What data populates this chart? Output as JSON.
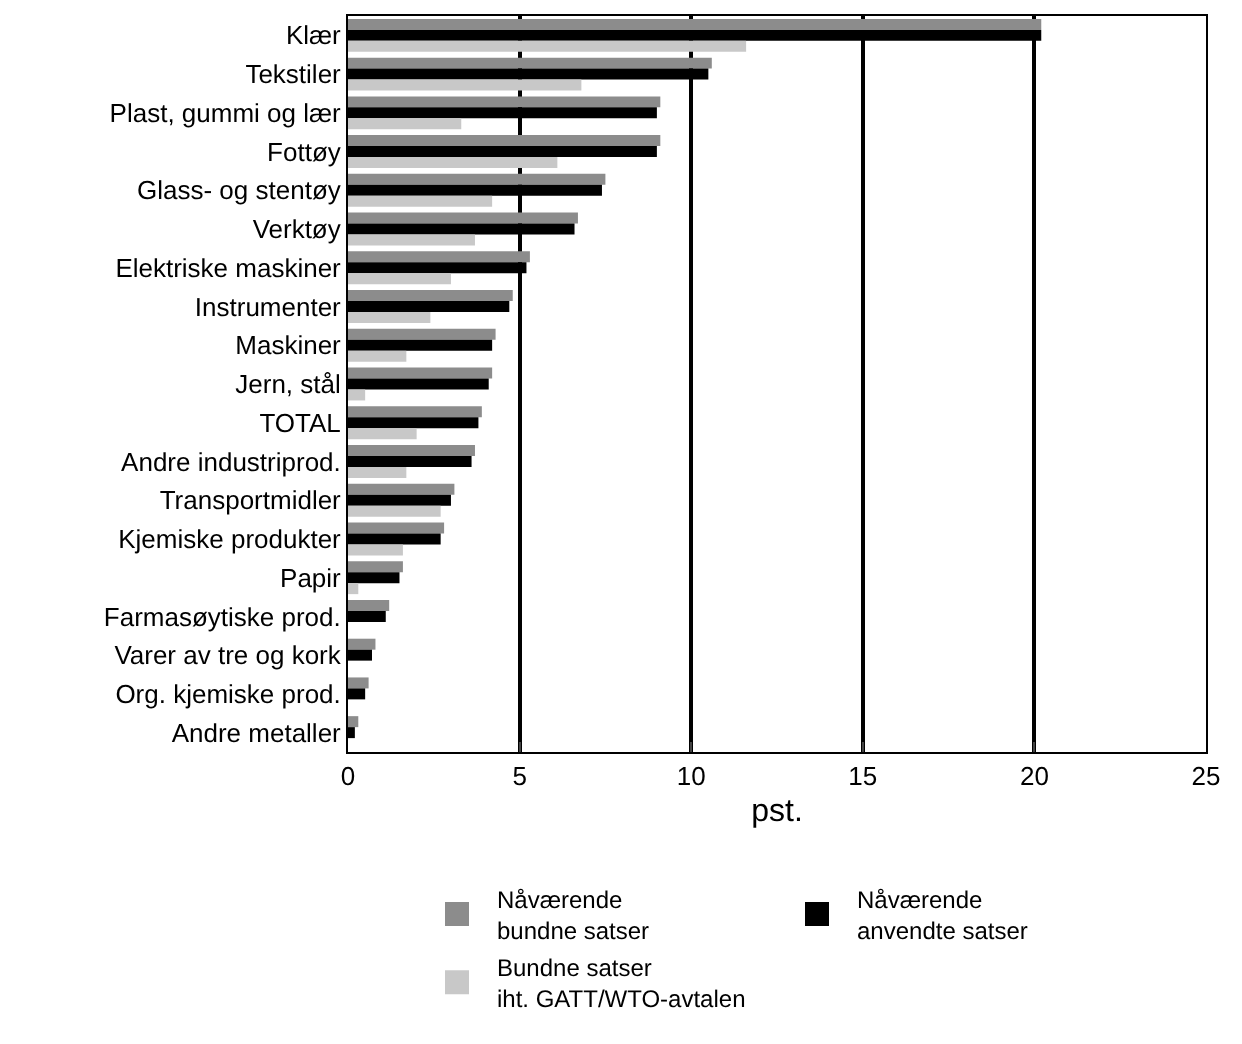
{
  "chart_data": {
    "type": "bar",
    "orientation": "horizontal",
    "xlabel": "pst.",
    "categories": [
      "Klær",
      "Tekstiler",
      "Plast, gummi og lær",
      "Fottøy",
      "Glass- og stentøy",
      "Verktøy",
      "Elektriske maskiner",
      "Instrumenter",
      "Maskiner",
      "Jern, stål",
      "TOTAL",
      "Andre industriprod.",
      "Transportmidler",
      "Kjemiske produkter",
      "Papir",
      "Farmasøytiske prod.",
      "Varer av tre og kork",
      "Org. kjemiske prod.",
      "Andre metaller"
    ],
    "series": [
      {
        "name": "Nåværende\nbundne satser",
        "color": "#8c8c8c",
        "values": [
          20.2,
          10.6,
          9.1,
          9.1,
          7.5,
          6.7,
          5.3,
          4.8,
          4.3,
          4.2,
          3.9,
          3.7,
          3.1,
          2.8,
          1.6,
          1.2,
          0.8,
          0.6,
          0.3
        ]
      },
      {
        "name": "Nåværende\nanvendte satser",
        "color": "#000000",
        "values": [
          20.2,
          10.5,
          9.0,
          9.0,
          7.4,
          6.6,
          5.2,
          4.7,
          4.2,
          4.1,
          3.8,
          3.6,
          3.0,
          2.7,
          1.5,
          1.1,
          0.7,
          0.5,
          0.2
        ]
      },
      {
        "name": "Bundne satser\niht. GATT/WTO-avtalen",
        "color": "#c8c8c8",
        "values": [
          11.6,
          6.8,
          3.3,
          6.1,
          4.2,
          3.7,
          3.0,
          2.4,
          1.7,
          0.5,
          2.0,
          1.7,
          2.7,
          1.6,
          0.3,
          0,
          0,
          0,
          0
        ]
      }
    ],
    "xlim": [
      0,
      25
    ],
    "xticks": [
      0,
      5,
      10,
      15,
      20,
      25
    ],
    "grid": "x",
    "legend": "bottom"
  }
}
